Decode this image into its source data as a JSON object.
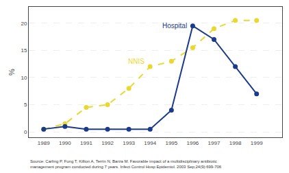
{
  "chart_data": {
    "type": "line",
    "x": [
      1989,
      1990,
      1991,
      1992,
      1993,
      1994,
      1995,
      1996,
      1997,
      1998,
      1999
    ],
    "series": [
      {
        "name": "NNIS",
        "color": "#e8d830",
        "line_style": "dashed",
        "marker": "circle",
        "values": [
          0.5,
          1.5,
          4.5,
          5.0,
          8.0,
          12.0,
          13.0,
          15.5,
          19.0,
          20.5,
          20.5
        ]
      },
      {
        "name": "Hospital",
        "color": "#1a3a8a",
        "line_style": "solid",
        "marker": "circle",
        "values": [
          0.5,
          1.0,
          0.5,
          0.5,
          0.5,
          0.5,
          4.0,
          19.5,
          17.0,
          12.0,
          7.0
        ]
      }
    ],
    "y_label": "%",
    "xlim": [
      1988.3,
      2000.2
    ],
    "xticks": [
      1989,
      1990,
      1991,
      1992,
      1993,
      1994,
      1995,
      1996,
      1997,
      1998,
      1999
    ],
    "ylim": [
      -1,
      23
    ],
    "yticks": [
      0,
      5,
      10,
      15,
      20
    ],
    "grid": true,
    "annotations": [
      "Source: Carling P, Fung T, Killion A, Terrin N, Barza M. Favorable impact of a multidisciplinary antibiotic\nmanagement program conducted during 7 years. Infect Control Hosp Epidemiol. 2003 Sep;24(9):699-706"
    ]
  }
}
